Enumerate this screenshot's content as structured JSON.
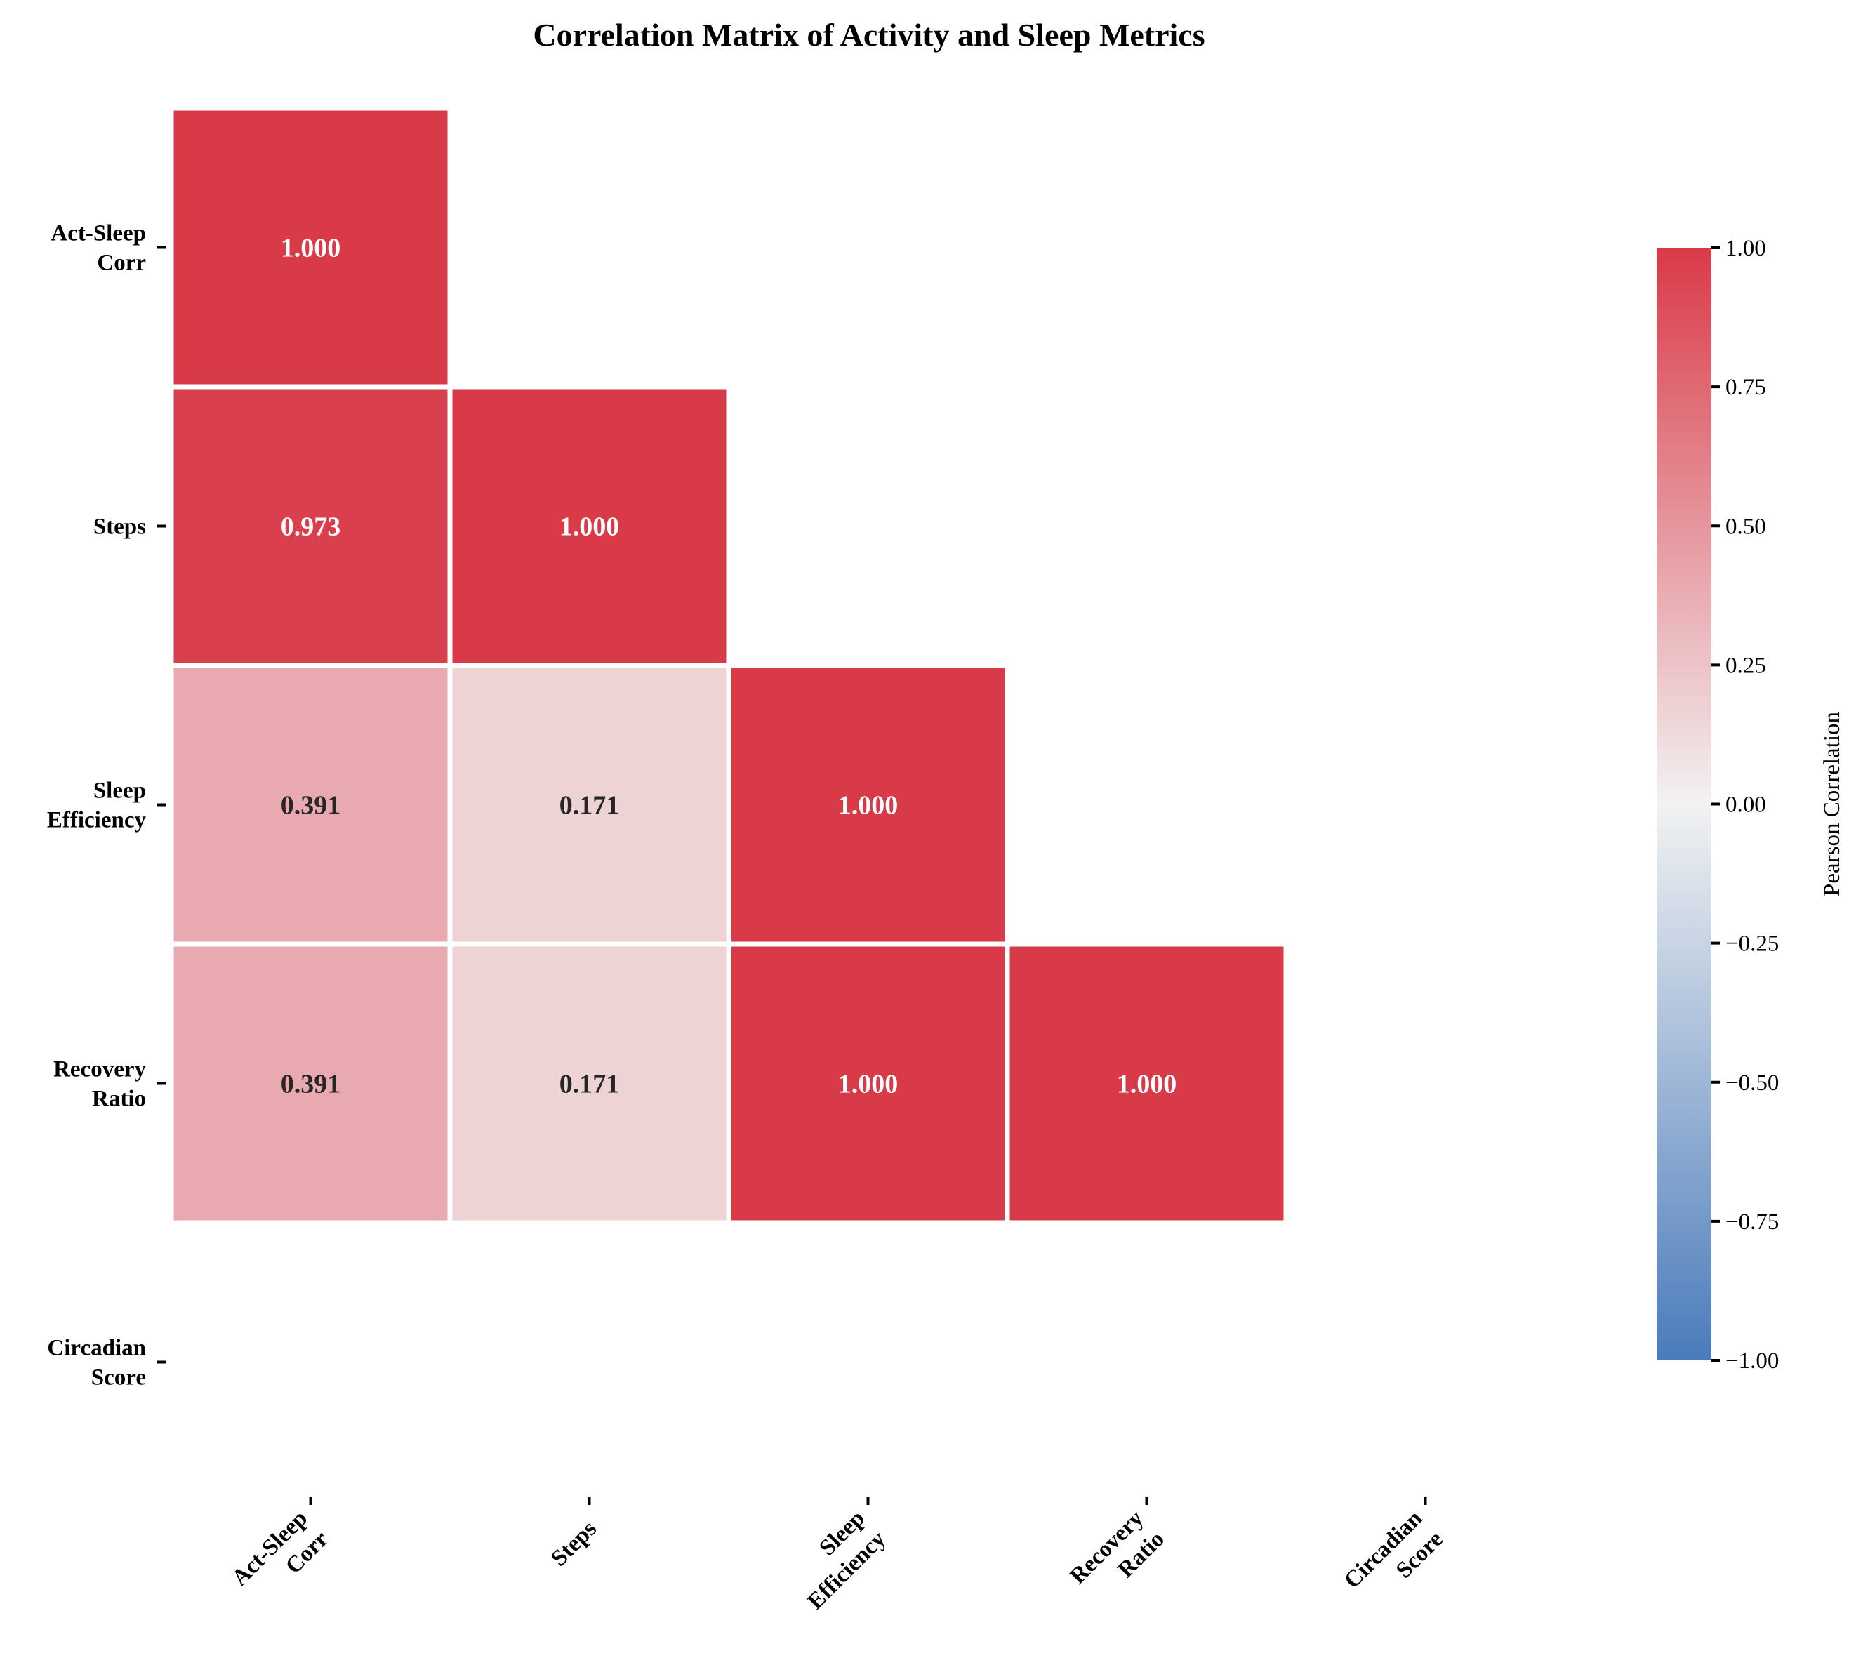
{
  "chart_data": {
    "type": "heatmap",
    "title": "Correlation Matrix of Activity and Sleep Metrics",
    "variables": [
      [
        "Act-Sleep",
        "Corr"
      ],
      [
        "Steps"
      ],
      [
        "Sleep",
        "Efficiency"
      ],
      [
        "Recovery",
        "Ratio"
      ],
      [
        "Circadian",
        "Score"
      ]
    ],
    "matrix": [
      [
        "1.000",
        null,
        null,
        null,
        null
      ],
      [
        "0.973",
        "1.000",
        null,
        null,
        null
      ],
      [
        "0.391",
        "0.171",
        "1.000",
        null,
        null
      ],
      [
        "0.391",
        "0.171",
        "1.000",
        "1.000",
        null
      ],
      [
        null,
        null,
        null,
        null,
        null
      ]
    ],
    "mask": "upper triangle (excluding diagonal); last row masked",
    "colorbar": {
      "label": "Pearson Correlation",
      "range": [
        -1.0,
        1.0
      ],
      "ticks": [
        "1.00",
        "0.75",
        "0.50",
        "0.25",
        "0.00",
        "−0.25",
        "−0.50",
        "−0.75",
        "−1.00"
      ],
      "tick_values": [
        1.0,
        0.75,
        0.5,
        0.25,
        0.0,
        -0.25,
        -0.5,
        -0.75,
        -1.0
      ],
      "colors": {
        "negative": "#4a7bbb",
        "neutral": "#f2f2f2",
        "positive": "#d93a48"
      }
    }
  }
}
